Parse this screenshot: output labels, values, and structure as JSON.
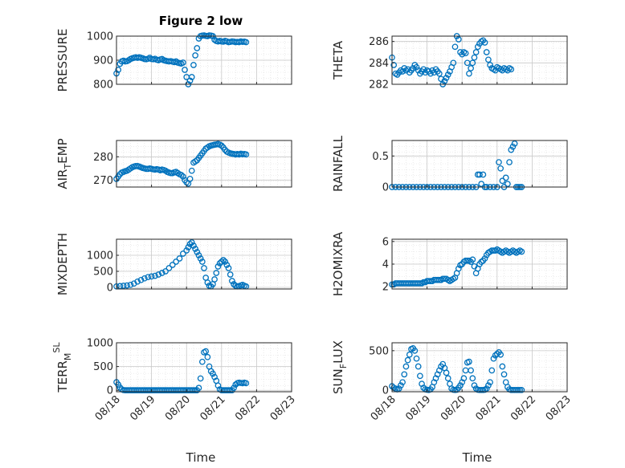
{
  "figure": {
    "title": "Figure 2 low",
    "xlabel": "Time"
  },
  "marker_color": "#0072BD",
  "x_ticks": [
    "08/18",
    "08/19",
    "08/20",
    "08/21",
    "08/22",
    "08/23"
  ],
  "chart_data": [
    {
      "type": "scatter",
      "id": "pressure",
      "ylabel": {
        "base": "PRESSURE",
        "sub": "",
        "tail": "",
        "sup": ""
      },
      "ylim": [
        800,
        1000
      ],
      "yticks": [
        800,
        900,
        1000
      ],
      "xlim": [
        0,
        5
      ],
      "grid": true,
      "x": [
        0.0,
        0.05,
        0.1,
        0.15,
        0.2,
        0.25,
        0.3,
        0.35,
        0.4,
        0.45,
        0.5,
        0.55,
        0.6,
        0.65,
        0.7,
        0.75,
        0.8,
        0.85,
        0.9,
        0.95,
        1.0,
        1.05,
        1.1,
        1.15,
        1.2,
        1.25,
        1.3,
        1.35,
        1.4,
        1.45,
        1.5,
        1.55,
        1.6,
        1.65,
        1.7,
        1.75,
        1.8,
        1.85,
        1.9,
        1.95,
        2.0,
        2.05,
        2.1,
        2.15,
        2.2,
        2.25,
        2.3,
        2.35,
        2.4,
        2.45,
        2.5,
        2.55,
        2.6,
        2.65,
        2.7,
        2.75,
        2.8,
        2.85,
        2.9,
        2.95,
        3.0,
        3.05,
        3.1,
        3.15,
        3.2,
        3.25,
        3.3,
        3.35,
        3.4,
        3.45,
        3.5,
        3.55,
        3.6,
        3.65,
        3.7
      ],
      "y": [
        845,
        860,
        885,
        895,
        898,
        895,
        896,
        900,
        905,
        908,
        910,
        912,
        910,
        912,
        910,
        908,
        905,
        904,
        906,
        910,
        905,
        904,
        906,
        902,
        900,
        903,
        905,
        900,
        898,
        896,
        895,
        896,
        894,
        892,
        895,
        890,
        888,
        886,
        890,
        860,
        830,
        800,
        815,
        830,
        880,
        920,
        950,
        990,
        1000,
        1002,
        1003,
        1001,
        1000,
        1003,
        1002,
        1000,
        985,
        980,
        978,
        980,
        978,
        977,
        980,
        978,
        975,
        976,
        978,
        977,
        975,
        976,
        975,
        978,
        976,
        977,
        975
      ]
    },
    {
      "type": "scatter",
      "id": "theta",
      "ylabel": {
        "base": "THETA",
        "sub": "",
        "tail": "",
        "sup": ""
      },
      "ylim": [
        282,
        286.5
      ],
      "yticks": [
        282,
        284,
        286
      ],
      "xlim": [
        0,
        5
      ],
      "grid": true,
      "x": [
        0.0,
        0.05,
        0.1,
        0.15,
        0.2,
        0.25,
        0.3,
        0.35,
        0.4,
        0.45,
        0.5,
        0.55,
        0.6,
        0.65,
        0.7,
        0.75,
        0.8,
        0.85,
        0.9,
        0.95,
        1.0,
        1.05,
        1.1,
        1.15,
        1.2,
        1.25,
        1.3,
        1.35,
        1.4,
        1.45,
        1.5,
        1.55,
        1.6,
        1.65,
        1.7,
        1.75,
        1.8,
        1.85,
        1.9,
        1.95,
        2.0,
        2.05,
        2.1,
        2.15,
        2.2,
        2.25,
        2.3,
        2.35,
        2.4,
        2.45,
        2.5,
        2.55,
        2.6,
        2.65,
        2.7,
        2.75,
        2.8,
        2.85,
        2.9,
        2.95,
        3.0,
        3.05,
        3.1,
        3.15,
        3.2,
        3.25,
        3.3,
        3.35,
        3.4
      ],
      "y": [
        284.5,
        283.8,
        283.0,
        282.9,
        283.1,
        283.3,
        283.2,
        283.5,
        283.3,
        283.4,
        283.1,
        283.3,
        283.5,
        283.8,
        283.6,
        283.3,
        283.0,
        283.2,
        283.4,
        283.1,
        283.3,
        283.2,
        283.0,
        283.3,
        283.1,
        283.4,
        283.2,
        283.0,
        282.5,
        282.0,
        282.3,
        282.6,
        282.9,
        283.2,
        283.6,
        284.0,
        285.5,
        286.5,
        286.2,
        285.0,
        284.8,
        285.0,
        284.9,
        284.0,
        283.0,
        283.5,
        284.0,
        284.5,
        285.0,
        285.5,
        285.8,
        286.0,
        286.1,
        285.9,
        285.0,
        284.3,
        283.8,
        283.5,
        283.4,
        283.3,
        283.6,
        283.5,
        283.4,
        283.3,
        283.5,
        283.4,
        283.3,
        283.5,
        283.4
      ]
    },
    {
      "type": "scatter",
      "id": "air_temp",
      "ylabel": {
        "base": "AIR",
        "sub": "T",
        "tail": "EMP",
        "sup": ""
      },
      "ylim": [
        267,
        287
      ],
      "yticks": [
        270,
        280
      ],
      "xlim": [
        0,
        5
      ],
      "grid": true,
      "x": [
        0.0,
        0.05,
        0.1,
        0.15,
        0.2,
        0.25,
        0.3,
        0.35,
        0.4,
        0.45,
        0.5,
        0.55,
        0.6,
        0.65,
        0.7,
        0.75,
        0.8,
        0.85,
        0.9,
        0.95,
        1.0,
        1.05,
        1.1,
        1.15,
        1.2,
        1.25,
        1.3,
        1.35,
        1.4,
        1.45,
        1.5,
        1.55,
        1.6,
        1.65,
        1.7,
        1.75,
        1.8,
        1.85,
        1.9,
        1.95,
        2.0,
        2.05,
        2.1,
        2.15,
        2.2,
        2.25,
        2.3,
        2.35,
        2.4,
        2.45,
        2.5,
        2.55,
        2.6,
        2.65,
        2.7,
        2.75,
        2.8,
        2.85,
        2.9,
        2.95,
        3.0,
        3.05,
        3.1,
        3.15,
        3.2,
        3.25,
        3.3,
        3.35,
        3.4,
        3.45,
        3.5,
        3.55,
        3.6,
        3.65,
        3.7
      ],
      "y": [
        270.5,
        271.5,
        272.5,
        273.2,
        273.5,
        273.8,
        274.0,
        274.5,
        275.0,
        275.5,
        275.8,
        276.0,
        276.0,
        275.8,
        275.5,
        275.2,
        275.0,
        274.8,
        274.8,
        275.0,
        274.8,
        274.6,
        274.5,
        274.7,
        274.5,
        274.2,
        274.5,
        274.3,
        274.0,
        273.5,
        273.2,
        273.0,
        273.0,
        273.3,
        273.5,
        273.0,
        272.5,
        272.2,
        271.5,
        270.0,
        269.0,
        268.5,
        270.5,
        274.0,
        277.5,
        278.0,
        278.5,
        279.5,
        280.5,
        281.5,
        282.5,
        283.5,
        284.0,
        284.5,
        284.8,
        285.0,
        285.2,
        285.3,
        285.5,
        285.2,
        284.8,
        284.0,
        283.0,
        282.2,
        281.8,
        281.5,
        281.3,
        281.2,
        281.0,
        281.2,
        281.0,
        281.3,
        281.1,
        281.2,
        281.0
      ]
    },
    {
      "type": "scatter",
      "id": "rainfall",
      "ylabel": {
        "base": "RAINFALL",
        "sub": "",
        "tail": "",
        "sup": ""
      },
      "ylim": [
        0,
        0.75
      ],
      "yticks": [
        0,
        0.5
      ],
      "xlim": [
        0,
        5
      ],
      "grid": true,
      "x": [
        0.0,
        0.1,
        0.2,
        0.3,
        0.4,
        0.5,
        0.6,
        0.7,
        0.8,
        0.9,
        1.0,
        1.1,
        1.2,
        1.3,
        1.4,
        1.5,
        1.6,
        1.7,
        1.8,
        1.9,
        2.0,
        2.1,
        2.2,
        2.3,
        2.4,
        2.45,
        2.5,
        2.55,
        2.6,
        2.65,
        2.7,
        2.8,
        2.9,
        3.0,
        3.05,
        3.1,
        3.15,
        3.2,
        3.25,
        3.3,
        3.35,
        3.4,
        3.45,
        3.5,
        3.55,
        3.6,
        3.65,
        3.7
      ],
      "y": [
        0,
        0,
        0,
        0,
        0,
        0,
        0,
        0,
        0,
        0,
        0,
        0,
        0,
        0,
        0,
        0,
        0,
        0,
        0,
        0,
        0,
        0,
        0,
        0,
        0,
        0.2,
        0.2,
        0.05,
        0.2,
        0,
        0,
        0,
        0,
        0,
        0.4,
        0.3,
        0.1,
        0,
        0.15,
        0.05,
        0.4,
        0.6,
        0.65,
        0.7,
        0,
        0,
        0,
        0
      ]
    },
    {
      "type": "scatter",
      "id": "mixdepth",
      "ylabel": {
        "base": "MIXDEPTH",
        "sub": "",
        "tail": "",
        "sup": ""
      },
      "ylim": [
        -50,
        1500
      ],
      "yticks": [
        0,
        500,
        1000
      ],
      "xlim": [
        0,
        5
      ],
      "grid": true,
      "x": [
        0.0,
        0.1,
        0.2,
        0.3,
        0.4,
        0.5,
        0.6,
        0.7,
        0.8,
        0.9,
        1.0,
        1.1,
        1.2,
        1.3,
        1.4,
        1.5,
        1.6,
        1.7,
        1.8,
        1.9,
        2.0,
        2.05,
        2.1,
        2.15,
        2.2,
        2.25,
        2.3,
        2.35,
        2.4,
        2.45,
        2.5,
        2.55,
        2.6,
        2.65,
        2.7,
        2.75,
        2.8,
        2.85,
        2.9,
        2.95,
        3.0,
        3.05,
        3.1,
        3.15,
        3.2,
        3.25,
        3.3,
        3.35,
        3.4,
        3.45,
        3.5,
        3.55,
        3.6,
        3.65,
        3.7
      ],
      "y": [
        30,
        40,
        50,
        60,
        80,
        120,
        180,
        230,
        280,
        320,
        340,
        360,
        400,
        450,
        500,
        600,
        700,
        800,
        900,
        1050,
        1150,
        1250,
        1350,
        1400,
        1300,
        1200,
        1100,
        1000,
        900,
        800,
        600,
        300,
        150,
        50,
        30,
        100,
        250,
        450,
        650,
        750,
        800,
        850,
        800,
        700,
        600,
        400,
        200,
        100,
        50,
        30,
        40,
        60,
        80,
        50,
        30
      ]
    },
    {
      "type": "scatter",
      "id": "h2omixra",
      "ylabel": {
        "base": "H2OMIXRA",
        "sub": "",
        "tail": "",
        "sup": ""
      },
      "ylim": [
        1.8,
        6.2
      ],
      "yticks": [
        2,
        4,
        6
      ],
      "xlim": [
        0,
        5
      ],
      "grid": true,
      "x": [
        0.0,
        0.05,
        0.1,
        0.15,
        0.2,
        0.25,
        0.3,
        0.35,
        0.4,
        0.45,
        0.5,
        0.55,
        0.6,
        0.65,
        0.7,
        0.75,
        0.8,
        0.85,
        0.9,
        0.95,
        1.0,
        1.05,
        1.1,
        1.15,
        1.2,
        1.25,
        1.3,
        1.35,
        1.4,
        1.45,
        1.5,
        1.55,
        1.6,
        1.65,
        1.7,
        1.75,
        1.8,
        1.85,
        1.9,
        1.95,
        2.0,
        2.05,
        2.1,
        2.15,
        2.2,
        2.25,
        2.3,
        2.35,
        2.4,
        2.45,
        2.5,
        2.55,
        2.6,
        2.65,
        2.7,
        2.75,
        2.8,
        2.85,
        2.9,
        2.95,
        3.0,
        3.05,
        3.1,
        3.15,
        3.2,
        3.25,
        3.3,
        3.35,
        3.4,
        3.45,
        3.5,
        3.55,
        3.6,
        3.65,
        3.7
      ],
      "y": [
        2.2,
        2.2,
        2.3,
        2.3,
        2.3,
        2.3,
        2.3,
        2.3,
        2.3,
        2.3,
        2.3,
        2.3,
        2.3,
        2.3,
        2.3,
        2.3,
        2.3,
        2.3,
        2.4,
        2.4,
        2.5,
        2.5,
        2.5,
        2.5,
        2.6,
        2.6,
        2.6,
        2.6,
        2.6,
        2.7,
        2.7,
        2.7,
        2.6,
        2.5,
        2.6,
        2.7,
        2.8,
        3.2,
        3.6,
        3.9,
        4.0,
        4.2,
        4.3,
        4.3,
        4.3,
        4.2,
        4.4,
        3.8,
        3.2,
        3.6,
        4.0,
        4.2,
        4.3,
        4.5,
        4.8,
        5.0,
        5.1,
        5.2,
        5.2,
        5.2,
        5.3,
        5.2,
        5.1,
        5.0,
        5.1,
        5.2,
        5.1,
        5.0,
        5.1,
        5.2,
        5.1,
        5.0,
        5.1,
        5.2,
        5.1
      ]
    },
    {
      "type": "scatter",
      "id": "terr_msl",
      "ylabel": {
        "base": "TERR",
        "sub": "M",
        "tail": "",
        "sup": "SL"
      },
      "ylim": [
        -30,
        1000
      ],
      "yticks": [
        0,
        500,
        1000
      ],
      "xlim": [
        0,
        5
      ],
      "grid": true,
      "x": [
        0.0,
        0.05,
        0.1,
        0.15,
        0.2,
        0.25,
        0.3,
        0.35,
        0.4,
        0.45,
        0.5,
        0.55,
        0.6,
        0.65,
        0.7,
        0.75,
        0.8,
        0.85,
        0.9,
        0.95,
        1.0,
        1.05,
        1.1,
        1.15,
        1.2,
        1.25,
        1.3,
        1.35,
        1.4,
        1.45,
        1.5,
        1.55,
        1.6,
        1.65,
        1.7,
        1.75,
        1.8,
        1.85,
        1.9,
        1.95,
        2.0,
        2.05,
        2.1,
        2.15,
        2.2,
        2.25,
        2.3,
        2.35,
        2.4,
        2.45,
        2.5,
        2.55,
        2.6,
        2.65,
        2.7,
        2.75,
        2.8,
        2.85,
        2.9,
        2.95,
        3.0,
        3.05,
        3.1,
        3.15,
        3.2,
        3.25,
        3.3,
        3.35,
        3.4,
        3.45,
        3.5,
        3.55,
        3.6,
        3.65,
        3.7
      ],
      "y": [
        170,
        120,
        60,
        20,
        5,
        2,
        2,
        2,
        2,
        2,
        2,
        2,
        2,
        2,
        2,
        2,
        2,
        2,
        2,
        2,
        2,
        2,
        2,
        2,
        2,
        2,
        2,
        2,
        2,
        2,
        2,
        2,
        2,
        2,
        2,
        2,
        2,
        2,
        2,
        2,
        2,
        2,
        2,
        2,
        2,
        2,
        2,
        50,
        250,
        600,
        800,
        820,
        700,
        500,
        400,
        350,
        280,
        200,
        100,
        20,
        2,
        2,
        2,
        2,
        2,
        2,
        2,
        50,
        120,
        150,
        160,
        155,
        150,
        160,
        150
      ]
    },
    {
      "type": "scatter",
      "id": "sun_flux",
      "ylabel": {
        "base": "SUN",
        "sub": "F",
        "tail": "LUX",
        "sup": ""
      },
      "ylim": [
        -20,
        600
      ],
      "yticks": [
        0,
        500
      ],
      "xlim": [
        0,
        5
      ],
      "grid": true,
      "x": [
        0.0,
        0.05,
        0.1,
        0.15,
        0.2,
        0.25,
        0.3,
        0.35,
        0.4,
        0.45,
        0.5,
        0.55,
        0.6,
        0.65,
        0.7,
        0.75,
        0.8,
        0.85,
        0.9,
        0.95,
        1.0,
        1.05,
        1.1,
        1.15,
        1.2,
        1.25,
        1.3,
        1.35,
        1.4,
        1.45,
        1.5,
        1.55,
        1.6,
        1.65,
        1.7,
        1.75,
        1.8,
        1.85,
        1.9,
        1.95,
        2.0,
        2.05,
        2.1,
        2.15,
        2.2,
        2.25,
        2.3,
        2.35,
        2.4,
        2.45,
        2.5,
        2.55,
        2.6,
        2.65,
        2.7,
        2.75,
        2.8,
        2.85,
        2.9,
        2.95,
        3.0,
        3.05,
        3.1,
        3.15,
        3.2,
        3.25,
        3.3,
        3.35,
        3.4,
        3.45,
        3.5,
        3.55,
        3.6,
        3.65,
        3.7
      ],
      "y": [
        50,
        30,
        20,
        10,
        20,
        60,
        100,
        200,
        300,
        380,
        450,
        520,
        530,
        500,
        400,
        300,
        180,
        80,
        30,
        10,
        5,
        2,
        10,
        40,
        100,
        150,
        200,
        250,
        300,
        330,
        280,
        220,
        150,
        80,
        20,
        5,
        2,
        5,
        30,
        60,
        100,
        150,
        250,
        350,
        360,
        250,
        150,
        60,
        20,
        5,
        2,
        2,
        2,
        5,
        20,
        60,
        100,
        250,
        400,
        440,
        460,
        480,
        450,
        300,
        200,
        100,
        40,
        10,
        2,
        2,
        2,
        2,
        2,
        2,
        2
      ]
    }
  ]
}
